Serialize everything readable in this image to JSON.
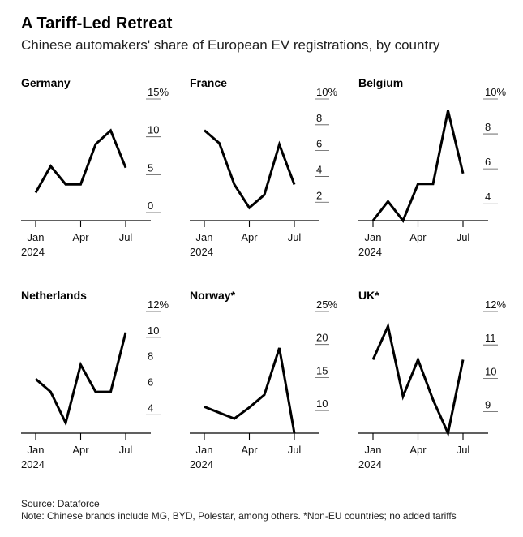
{
  "header": {
    "title": "A Tariff-Led Retreat",
    "subtitle": "Chinese automakers' share of European EV registrations, by country"
  },
  "footer": {
    "source": "Source: Dataforce",
    "note": "Note: Chinese brands include MG, BYD, Polestar, among others. *Non-EU countries; no added tariffs"
  },
  "colors": {
    "line": "#000000",
    "axis": "#000000",
    "text": "#111111"
  },
  "chart_data": [
    {
      "type": "line",
      "title": "Germany",
      "x": [
        "Jan",
        "Feb",
        "Mar",
        "Apr",
        "May",
        "Jun",
        "Jul"
      ],
      "x_ticks": [
        "Jan",
        "Apr",
        "Jul"
      ],
      "x_year": "2024",
      "values": [
        3.7,
        7.2,
        4.8,
        4.8,
        10.1,
        11.9,
        7.0
      ],
      "ylim": [
        0,
        15
      ],
      "y_ticks": [
        0,
        5,
        10,
        15
      ],
      "y_tick_labels": [
        "0",
        "5",
        "10",
        "15%"
      ]
    },
    {
      "type": "line",
      "title": "France",
      "x": [
        "Jan",
        "Feb",
        "Mar",
        "Apr",
        "May",
        "Jun",
        "Jul"
      ],
      "x_ticks": [
        "Jan",
        "Apr",
        "Jul"
      ],
      "x_year": "2024",
      "values": [
        8.2,
        7.2,
        4.0,
        2.2,
        3.2,
        7.1,
        4.0
      ],
      "ylim": [
        1.2,
        10
      ],
      "y_ticks": [
        2,
        4,
        6,
        8,
        10
      ],
      "y_tick_labels": [
        "2",
        "4",
        "6",
        "8",
        "10%"
      ]
    },
    {
      "type": "line",
      "title": "Belgium",
      "x": [
        "Jan",
        "Feb",
        "Mar",
        "Apr",
        "May",
        "Jun",
        "Jul"
      ],
      "x_ticks": [
        "Jan",
        "Apr",
        "Jul"
      ],
      "x_year": "2024",
      "values": [
        3.5,
        4.6,
        3.5,
        5.6,
        5.6,
        9.8,
        6.2
      ],
      "ylim": [
        3.5,
        10
      ],
      "y_ticks": [
        4,
        6,
        8,
        10
      ],
      "y_tick_labels": [
        "4",
        "6",
        "8",
        "10%"
      ]
    },
    {
      "type": "line",
      "title": "Netherlands",
      "x": [
        "Jan",
        "Feb",
        "Mar",
        "Apr",
        "May",
        "Jun",
        "Jul"
      ],
      "x_ticks": [
        "Jan",
        "Apr",
        "Jul"
      ],
      "x_year": "2024",
      "values": [
        7.4,
        6.4,
        4.0,
        8.5,
        6.4,
        6.4,
        11.0
      ],
      "ylim": [
        3.2,
        12
      ],
      "y_ticks": [
        4,
        6,
        8,
        10,
        12
      ],
      "y_tick_labels": [
        "4",
        "6",
        "8",
        "10",
        "12%"
      ]
    },
    {
      "type": "line",
      "title": "Norway*",
      "x": [
        "Jan",
        "Feb",
        "Mar",
        "Apr",
        "May",
        "Jun",
        "Jul"
      ],
      "x_ticks": [
        "Jan",
        "Apr",
        "Jul"
      ],
      "x_year": "2024",
      "values": [
        11.8,
        10.9,
        10.0,
        11.7,
        13.6,
        20.7,
        7.8
      ],
      "ylim": [
        7.8,
        25
      ],
      "y_ticks": [
        10,
        15,
        20,
        25
      ],
      "y_tick_labels": [
        "10",
        "15",
        "20",
        "25%"
      ]
    },
    {
      "type": "line",
      "title": "UK*",
      "x": [
        "Jan",
        "Feb",
        "Mar",
        "Apr",
        "May",
        "Jun",
        "Jul"
      ],
      "x_ticks": [
        "Jan",
        "Apr",
        "Jul"
      ],
      "x_year": "2024",
      "values": [
        10.8,
        11.8,
        9.7,
        10.8,
        9.6,
        8.6,
        10.8
      ],
      "ylim": [
        8.6,
        12
      ],
      "y_ticks": [
        9,
        10,
        11,
        12
      ],
      "y_tick_labels": [
        "9",
        "10",
        "11",
        "12%"
      ]
    }
  ]
}
